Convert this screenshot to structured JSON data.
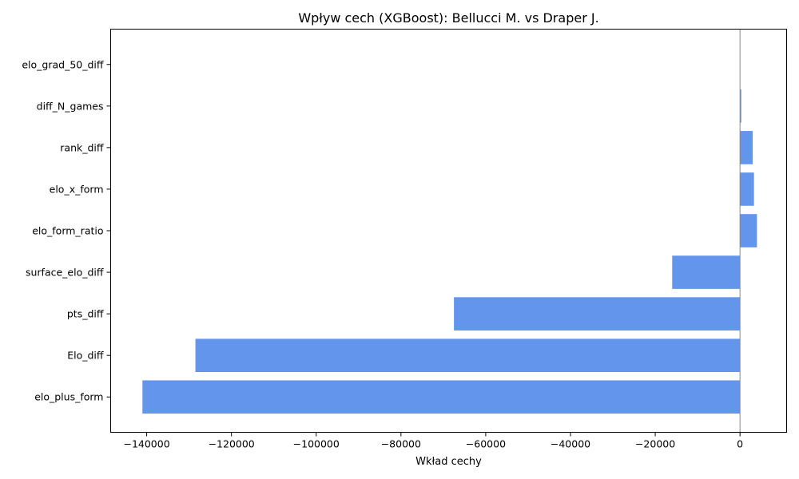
{
  "chart_data": {
    "type": "bar",
    "orientation": "horizontal",
    "title": "Wpływ cech (XGBoost): Bellucci M. vs Draper J.",
    "xlabel": "Wkład cechy",
    "ylabel": "",
    "xlim": [
      -148500,
      11000
    ],
    "xticks": [
      -140000,
      -120000,
      -100000,
      -80000,
      -60000,
      -40000,
      -20000,
      0
    ],
    "xtick_labels": [
      "−140000",
      "−120000",
      "−100000",
      "−80000",
      "−60000",
      "−40000",
      "−20000",
      "0"
    ],
    "categories": [
      "elo_grad_50_diff",
      "diff_N_games",
      "rank_diff",
      "elo_x_form",
      "elo_form_ratio",
      "surface_elo_diff",
      "pts_diff",
      "Elo_diff",
      "elo_plus_form"
    ],
    "values": [
      0,
      300,
      3000,
      3300,
      4000,
      -16000,
      -67500,
      -128500,
      -141000
    ],
    "bar_color": "#6495ED",
    "zero_line": true,
    "grid": false,
    "legend": "none"
  }
}
